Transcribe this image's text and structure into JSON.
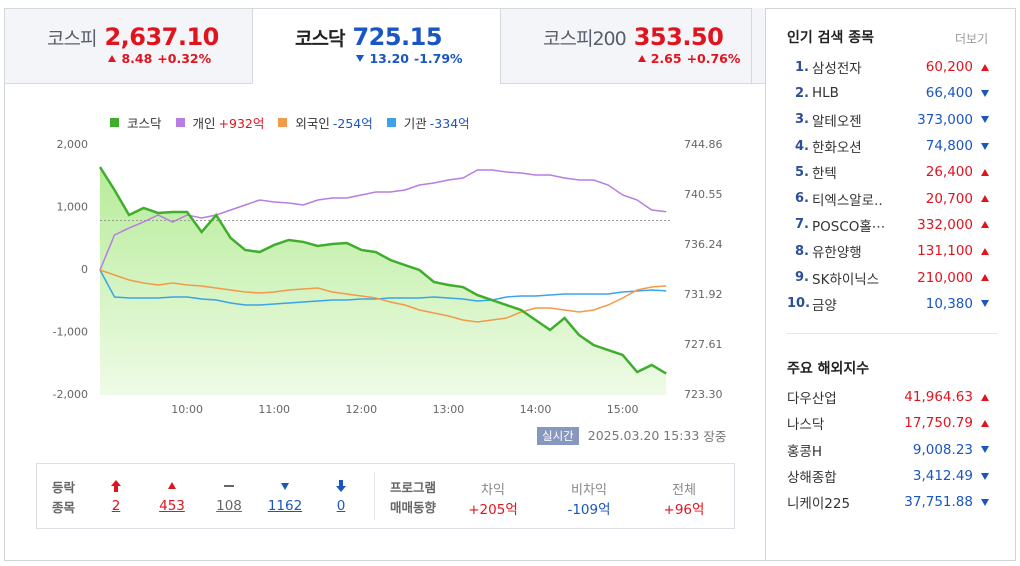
{
  "tabs": [
    {
      "name": "코스피",
      "value": "2,637.10",
      "direction": "up",
      "change": "8.48",
      "change_pct": "+0.32%"
    },
    {
      "name": "코스닥",
      "value": "725.15",
      "direction": "down",
      "change": "13.20",
      "change_pct": "-1.79%"
    },
    {
      "name": "코스피200",
      "value": "353.50",
      "direction": "up",
      "change": "2.65",
      "change_pct": "+0.76%"
    }
  ],
  "chart_data": {
    "type": "line",
    "x": [
      "09:00",
      "09:10",
      "09:20",
      "09:30",
      "09:40",
      "09:50",
      "10:00",
      "10:10",
      "10:20",
      "10:30",
      "10:40",
      "10:50",
      "11:00",
      "11:10",
      "11:20",
      "11:30",
      "11:40",
      "11:50",
      "12:00",
      "12:10",
      "12:20",
      "12:30",
      "12:40",
      "12:50",
      "13:00",
      "13:10",
      "13:20",
      "13:30",
      "13:40",
      "13:50",
      "14:00",
      "14:10",
      "14:20",
      "14:30",
      "14:40",
      "14:50",
      "15:00",
      "15:10",
      "15:20",
      "15:30"
    ],
    "xlim": [
      "09:00",
      "15:34"
    ],
    "xticks": [
      "10:00",
      "11:00",
      "12:00",
      "13:00",
      "14:00",
      "15:00"
    ],
    "ylim": [
      -2000,
      2000
    ],
    "yticks": [
      {
        "value": 2000,
        "label": "2,000"
      },
      {
        "value": 1000,
        "label": "1,000"
      },
      0,
      {
        "value": -1000,
        "label": "-1,000"
      },
      {
        "value": -2000,
        "label": "-2,000"
      }
    ],
    "y2lim": [
      723.3,
      744.86
    ],
    "y2ticks": [
      744.86,
      740.55,
      736.24,
      731.92,
      727.61,
      {
        "value": 723.3,
        "label": "723.30"
      }
    ],
    "reference_line": 738.35,
    "grid": false,
    "series": [
      {
        "name": "코스닥",
        "color": "#3fae2c",
        "axis": "y2",
        "fill": true,
        "values": [
          742.96,
          740.98,
          738.82,
          739.43,
          739.0,
          739.08,
          739.08,
          737.36,
          738.82,
          736.84,
          735.81,
          735.63,
          736.24,
          736.67,
          736.5,
          736.15,
          736.32,
          736.41,
          735.81,
          735.63,
          734.94,
          734.51,
          734.08,
          733.05,
          732.79,
          732.61,
          731.92,
          731.49,
          731.06,
          730.63,
          729.77,
          728.91,
          729.94,
          728.47,
          727.61,
          727.18,
          726.75,
          725.28,
          725.89,
          725.15
        ]
      },
      {
        "name": "개인",
        "legend_value": "+932억",
        "color": "#b57ee0",
        "values": [
          0,
          560,
          672,
          768,
          880,
          768,
          880,
          832,
          880,
          960,
          1040,
          1120,
          1088,
          1072,
          1040,
          1120,
          1152,
          1152,
          1200,
          1248,
          1248,
          1280,
          1360,
          1392,
          1440,
          1472,
          1600,
          1600,
          1568,
          1552,
          1520,
          1520,
          1472,
          1440,
          1440,
          1360,
          1200,
          1120,
          960,
          932
        ]
      },
      {
        "name": "외국인",
        "legend_value": "-254억",
        "color": "#f29a4a",
        "values": [
          0,
          -80,
          -160,
          -208,
          -240,
          -208,
          -240,
          -256,
          -288,
          -320,
          -352,
          -368,
          -352,
          -320,
          -304,
          -288,
          -352,
          -384,
          -416,
          -448,
          -512,
          -560,
          -640,
          -688,
          -736,
          -800,
          -832,
          -800,
          -768,
          -672,
          -608,
          -608,
          -640,
          -672,
          -640,
          -560,
          -448,
          -320,
          -272,
          -254
        ]
      },
      {
        "name": "기관",
        "legend_value": "-334억",
        "color": "#3ba3e8",
        "values": [
          0,
          -432,
          -448,
          -448,
          -448,
          -432,
          -432,
          -464,
          -480,
          -528,
          -560,
          -560,
          -544,
          -528,
          -512,
          -496,
          -480,
          -480,
          -464,
          -464,
          -448,
          -448,
          -448,
          -432,
          -448,
          -464,
          -496,
          -480,
          -432,
          -416,
          -416,
          -400,
          -384,
          -384,
          -384,
          -384,
          -352,
          -336,
          -320,
          -334
        ]
      }
    ]
  },
  "status": {
    "badge": "실시간",
    "timestamp": "2025.03.20 15:33",
    "session": "장중"
  },
  "updown": {
    "title": [
      "등락",
      "종목"
    ],
    "items": [
      {
        "kind": "upper",
        "value": "2"
      },
      {
        "kind": "up",
        "value": "453"
      },
      {
        "kind": "flat",
        "value": "108"
      },
      {
        "kind": "down",
        "value": "1162"
      },
      {
        "kind": "lower",
        "value": "0"
      }
    ]
  },
  "program": {
    "title": [
      "프로그램",
      "매매동향"
    ],
    "items": [
      {
        "label": "차익",
        "value": "+205억"
      },
      {
        "label": "비차익",
        "value": "-109억"
      },
      {
        "label": "전체",
        "value": "+96억"
      }
    ]
  },
  "popular": {
    "title": "인기 검색 종목",
    "more": "더보기",
    "items": [
      {
        "rank": "1.",
        "name": "삼성전자",
        "price": "60,200",
        "direction": "up"
      },
      {
        "rank": "2.",
        "name": "HLB",
        "price": "66,400",
        "direction": "down"
      },
      {
        "rank": "3.",
        "name": "알테오젠",
        "price": "373,000",
        "direction": "down"
      },
      {
        "rank": "4.",
        "name": "한화오션",
        "price": "74,800",
        "direction": "down"
      },
      {
        "rank": "5.",
        "name": "한텍",
        "price": "26,400",
        "direction": "up"
      },
      {
        "rank": "6.",
        "name": "티엑스알로..",
        "price": "20,700",
        "direction": "up"
      },
      {
        "rank": "7.",
        "name": "POSCO홀⋯",
        "price": "332,000",
        "direction": "up"
      },
      {
        "rank": "8.",
        "name": "유한양행",
        "price": "131,100",
        "direction": "up"
      },
      {
        "rank": "9.",
        "name": "SK하이닉스",
        "price": "210,000",
        "direction": "up"
      },
      {
        "rank": "10.",
        "name": "금양",
        "price": "10,380",
        "direction": "down"
      }
    ]
  },
  "world": {
    "title": "주요 해외지수",
    "items": [
      {
        "name": "다우산업",
        "value": "41,964.63",
        "direction": "up"
      },
      {
        "name": "나스닥",
        "value": "17,750.79",
        "direction": "up"
      },
      {
        "name": "홍콩H",
        "value": "9,008.23",
        "direction": "down"
      },
      {
        "name": "상해종합",
        "value": "3,412.49",
        "direction": "down"
      },
      {
        "name": "니케이225",
        "value": "37,751.88",
        "direction": "down"
      }
    ]
  }
}
